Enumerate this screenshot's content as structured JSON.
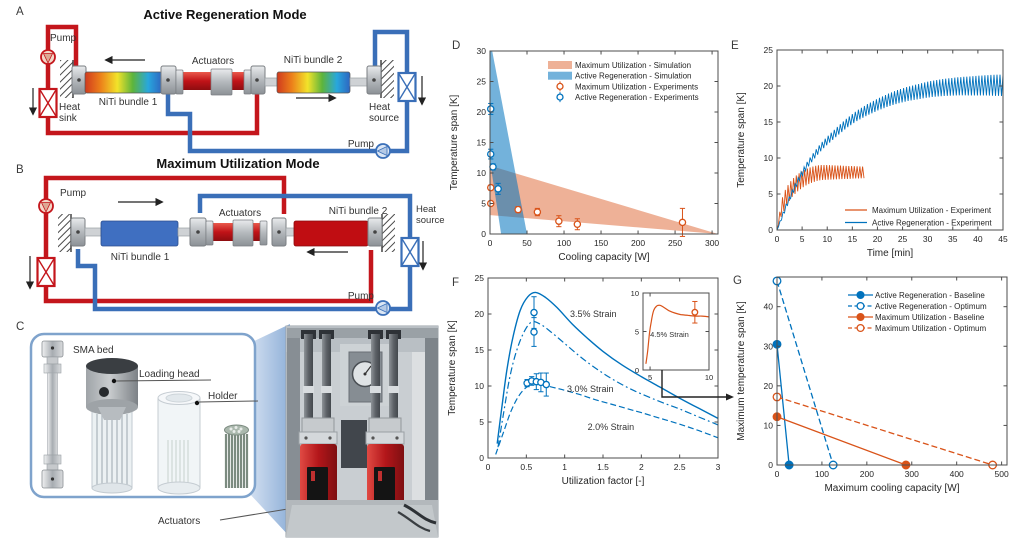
{
  "panels": {
    "a": "A",
    "b": "B",
    "c": "C",
    "d": "D",
    "e": "E",
    "f": "F",
    "g": "G"
  },
  "diagram_a": {
    "title": "Active Regeneration Mode",
    "pump_top": "Pump",
    "pump_bottom": "Pump",
    "heat_sink": [
      "Heat",
      "sink"
    ],
    "heat_source": [
      "Heat",
      "source"
    ],
    "niti1": "NiTi bundle 1",
    "niti2": "NiTi bundle 2",
    "actuators": "Actuators"
  },
  "diagram_b": {
    "title": "Maximum Utilization Mode",
    "pump_top": "Pump",
    "pump_bottom": "Pump",
    "heat_source": [
      "Heat",
      "source"
    ],
    "niti1": "NiTi bundle 1",
    "niti2": "NiTi bundle 2",
    "actuators": "Actuators"
  },
  "diagram_c": {
    "sma_bed": "SMA bed",
    "loading_head": "Loading head",
    "holder": "Holder",
    "actuators": "Actuators"
  },
  "chart_data": [
    {
      "id": "D",
      "type": "scatter",
      "xlabel": "Cooling capacity [W]",
      "ylabel": "Temperature span [K]",
      "xlim": [
        0,
        308
      ],
      "ylim": [
        0,
        30
      ],
      "xticks": [
        0,
        50,
        100,
        150,
        200,
        250,
        300
      ],
      "yticks": [
        0,
        5,
        10,
        15,
        20,
        25,
        30
      ],
      "bands": [
        {
          "name": "Maximum Utilization - Simulation",
          "color": "rgba(217,83,25,0.45)",
          "points": [
            [
              0,
              11.2
            ],
            [
              308,
              0
            ],
            [
              0,
              3.1
            ]
          ]
        },
        {
          "name": "Active Regeneration - Simulation",
          "color": "rgba(0,114,189,0.55)",
          "points": [
            [
              0,
              30
            ],
            [
              3,
              30
            ],
            [
              50,
              0
            ],
            [
              15,
              0
            ],
            [
              0,
              12
            ]
          ]
        }
      ],
      "scatter": [
        {
          "name": "Maximum Utilization - Experiments",
          "color": "#D95319",
          "points": [
            [
              1,
              7.6,
              0.4
            ],
            [
              1,
              5.0,
              0.3
            ],
            [
              38,
              4.0,
              0.5
            ],
            [
              64,
              3.6,
              0.6
            ],
            [
              93,
              2.1,
              0.9
            ],
            [
              118,
              1.6,
              0.9
            ],
            [
              260,
              1.9,
              2.3
            ]
          ]
        },
        {
          "name": "Active Regeneration - Experiments",
          "color": "#0072BD",
          "points": [
            [
              1,
              20.5,
              0.9
            ],
            [
              1,
              13.1,
              0.8
            ],
            [
              4,
              11.0,
              0.5
            ],
            [
              11,
              7.4,
              0.9
            ]
          ]
        }
      ],
      "legend": [
        {
          "label": "Maximum Utilization - Simulation",
          "swatch": "band",
          "color": "rgba(217,83,25,0.45)"
        },
        {
          "label": "Active Regeneration - Simulation",
          "swatch": "band",
          "color": "rgba(0,114,189,0.55)"
        },
        {
          "label": "Maximum Utilization - Experiments",
          "swatch": "errmarker",
          "color": "#D95319"
        },
        {
          "label": "Active Regeneration - Experiments",
          "swatch": "errmarker",
          "color": "#0072BD"
        }
      ]
    },
    {
      "id": "E",
      "type": "line",
      "xlabel": "Time [min]",
      "ylabel": "Temperature span [K]",
      "xlim": [
        0,
        45
      ],
      "ylim": [
        0,
        25
      ],
      "xticks": [
        0,
        5,
        10,
        15,
        20,
        25,
        30,
        35,
        40,
        45
      ],
      "yticks": [
        0,
        5,
        10,
        15,
        20,
        25
      ],
      "series": [
        {
          "name": "Maximum Utilization - Experiment",
          "color": "#D95319",
          "width": 0.9,
          "envelope": [
            [
              0,
              0
            ],
            [
              0.5,
              1.8
            ],
            [
              1,
              3.2
            ],
            [
              1.5,
              4.1
            ],
            [
              2,
              4.8
            ],
            [
              3,
              5.8
            ],
            [
              4,
              6.5
            ],
            [
              5,
              7.0
            ],
            [
              6,
              7.4
            ],
            [
              7,
              7.7
            ],
            [
              8,
              7.9
            ],
            [
              9,
              8.0
            ],
            [
              10,
              8.0
            ],
            [
              12,
              8.0
            ],
            [
              14,
              8.0
            ],
            [
              16,
              8.0
            ],
            [
              17.5,
              8.0
            ]
          ],
          "osc": {
            "amp0": 1.3,
            "amp1": 0.8,
            "period": 0.55
          }
        },
        {
          "name": "Active Regeneration - Experiment",
          "color": "#0072BD",
          "width": 0.9,
          "envelope": [
            [
              0,
              0
            ],
            [
              1,
              1.8
            ],
            [
              2,
              3.6
            ],
            [
              3,
              5.2
            ],
            [
              4,
              6.6
            ],
            [
              5,
              7.9
            ],
            [
              6,
              9.0
            ],
            [
              7,
              10.0
            ],
            [
              8,
              10.9
            ],
            [
              9,
              11.7
            ],
            [
              10,
              12.4
            ],
            [
              12,
              13.7
            ],
            [
              14,
              14.9
            ],
            [
              16,
              15.9
            ],
            [
              18,
              16.7
            ],
            [
              20,
              17.4
            ],
            [
              22,
              18.0
            ],
            [
              24,
              18.5
            ],
            [
              26,
              18.9
            ],
            [
              28,
              19.2
            ],
            [
              30,
              19.5
            ],
            [
              32,
              19.7
            ],
            [
              34,
              19.85
            ],
            [
              36,
              19.95
            ],
            [
              38,
              20.0
            ],
            [
              40,
              20.05
            ],
            [
              42,
              20.1
            ],
            [
              45,
              20.1
            ]
          ],
          "osc": {
            "amp0": 0.3,
            "amp1": 1.5,
            "period": 0.6
          }
        }
      ],
      "legend": [
        {
          "label": "Maximum Utilization - Experiment",
          "swatch": "line",
          "color": "#D95319"
        },
        {
          "label": "Active Regeneration - Experiment",
          "swatch": "line",
          "color": "#0072BD"
        }
      ]
    },
    {
      "id": "F",
      "type": "line",
      "xlabel": "Utilization factor [-]",
      "ylabel": "Temperature span [K]",
      "xlim": [
        0,
        3
      ],
      "ylim": [
        0,
        25
      ],
      "xticks": [
        0,
        0.5,
        1,
        1.5,
        2,
        2.5,
        3
      ],
      "yticks": [
        0,
        5,
        10,
        15,
        20,
        25
      ],
      "series": [
        {
          "name": "3.5% Strain",
          "color": "#0072BD",
          "dash": "solid",
          "width": 1.4,
          "points": [
            [
              0.12,
              2
            ],
            [
              0.18,
              7
            ],
            [
              0.25,
              12.5
            ],
            [
              0.33,
              17
            ],
            [
              0.42,
              20.5
            ],
            [
              0.52,
              22.4
            ],
            [
              0.62,
              23
            ],
            [
              0.75,
              22.3
            ],
            [
              0.9,
              20.9
            ],
            [
              1.1,
              18.6
            ],
            [
              1.3,
              16.6
            ],
            [
              1.5,
              14.8
            ],
            [
              1.75,
              12.9
            ],
            [
              2.0,
              11.3
            ],
            [
              2.25,
              9.8
            ],
            [
              2.5,
              8.3
            ],
            [
              2.75,
              6.9
            ],
            [
              3.0,
              5.5
            ]
          ]
        },
        {
          "name": "3.0% Strain",
          "color": "#0072BD",
          "dash": "dashdot",
          "width": 1.2,
          "points": [
            [
              0.13,
              1.5
            ],
            [
              0.2,
              6
            ],
            [
              0.28,
              11
            ],
            [
              0.37,
              14.8
            ],
            [
              0.47,
              17.5
            ],
            [
              0.57,
              18.9
            ],
            [
              0.68,
              18.6
            ],
            [
              0.8,
              17.7
            ],
            [
              1.0,
              15.9
            ],
            [
              1.2,
              14.1
            ],
            [
              1.4,
              12.5
            ],
            [
              1.6,
              11.1
            ],
            [
              1.8,
              9.9
            ],
            [
              2.0,
              8.9
            ],
            [
              2.25,
              7.8
            ],
            [
              2.5,
              6.8
            ],
            [
              2.75,
              5.7
            ],
            [
              3.0,
              4.6
            ]
          ]
        },
        {
          "name": "2.0% Strain",
          "color": "#0072BD",
          "dash": "dashed",
          "width": 1.2,
          "points": [
            [
              0.1,
              0.5
            ],
            [
              0.2,
              3.5
            ],
            [
              0.3,
              6.5
            ],
            [
              0.4,
              8.6
            ],
            [
              0.5,
              9.8
            ],
            [
              0.6,
              10.3
            ],
            [
              0.7,
              10.2
            ],
            [
              0.85,
              9.8
            ],
            [
              1.0,
              9.4
            ],
            [
              1.2,
              8.8
            ],
            [
              1.4,
              8.1
            ],
            [
              1.6,
              7.5
            ],
            [
              1.8,
              6.9
            ],
            [
              2.0,
              6.3
            ],
            [
              2.25,
              5.5
            ],
            [
              2.5,
              4.7
            ],
            [
              2.75,
              3.8
            ],
            [
              3.0,
              2.8
            ]
          ]
        }
      ],
      "scatter": [
        {
          "name": "Experiments",
          "color": "#0072BD",
          "points": [
            [
              0.6,
              20.2,
              2.2
            ],
            [
              0.6,
              17.5,
              2.0
            ],
            [
              0.51,
              10.4,
              0.5
            ],
            [
              0.57,
              10.7,
              0.6
            ],
            [
              0.63,
              10.6,
              1.1
            ],
            [
              0.69,
              10.5,
              1.3
            ],
            [
              0.76,
              10.2,
              1.6
            ]
          ]
        }
      ],
      "annotations": [
        {
          "text": "3.5% Strain",
          "x": 1.07,
          "y": 19.6
        },
        {
          "text": "3.0% Strain",
          "x": 1.03,
          "y": 9.2
        },
        {
          "text": "2.0% Strain",
          "x": 1.3,
          "y": 3.9
        }
      ],
      "inset": {
        "xlim": [
          4.4,
          10
        ],
        "ylim": [
          0,
          10
        ],
        "xticks": [
          5,
          10
        ],
        "yticks": [
          0,
          5,
          10
        ],
        "series": [
          {
            "name": "4.5% Strain",
            "color": "#D95319",
            "dash": "solid",
            "width": 1.2,
            "points": [
              [
                4.65,
                0.8
              ],
              [
                4.8,
                2.5
              ],
              [
                4.95,
                4.8
              ],
              [
                5.1,
                6.3
              ],
              [
                5.3,
                7.7
              ],
              [
                5.55,
                8.3
              ],
              [
                5.85,
                8.4
              ],
              [
                6.2,
                8.1
              ],
              [
                6.6,
                7.7
              ],
              [
                7.1,
                7.4
              ],
              [
                7.6,
                7.2
              ],
              [
                8.2,
                7.1
              ],
              [
                8.8,
                7.0
              ],
              [
                9.4,
                7.0
              ],
              [
                10,
                6.9
              ]
            ]
          }
        ],
        "scatter": [
          {
            "name": "4.5% Strain Experiment",
            "color": "#D95319",
            "points": [
              [
                8.8,
                7.5,
                1.4
              ]
            ]
          }
        ],
        "annotations": [
          {
            "text": "4.5% Strain",
            "x": 5.0,
            "y": 4.3
          }
        ]
      }
    },
    {
      "id": "G",
      "type": "line",
      "xlabel": "Maximum cooling capacity [W]",
      "ylabel": "Maximum temperature span [K]",
      "xlim": [
        0,
        512
      ],
      "ylim": [
        0,
        47.5
      ],
      "xticks": [
        0,
        100,
        200,
        300,
        400,
        500
      ],
      "yticks": [
        0,
        10,
        20,
        30,
        40
      ],
      "series": [
        {
          "name": "Active Regeneration - Baseline",
          "color": "#0072BD",
          "dash": "solid",
          "width": 1.3,
          "marker": "filled",
          "points": [
            [
              0,
              30.5
            ],
            [
              27,
              0
            ]
          ]
        },
        {
          "name": "Active Regeneration - Optimum",
          "color": "#0072BD",
          "dash": "dashed",
          "width": 1.3,
          "marker": "open",
          "points": [
            [
              0,
              46.5
            ],
            [
              125,
              0
            ]
          ]
        },
        {
          "name": "Maximum Utilization - Baseline",
          "color": "#D95319",
          "dash": "solid",
          "width": 1.3,
          "marker": "filled",
          "points": [
            [
              0,
              12.2
            ],
            [
              287,
              0
            ]
          ]
        },
        {
          "name": "Maximum Utilization - Optimum",
          "color": "#D95319",
          "dash": "dashed",
          "width": 1.3,
          "marker": "open",
          "points": [
            [
              0,
              17.2
            ],
            [
              480,
              0
            ]
          ]
        }
      ],
      "legend": [
        {
          "label": "Active Regeneration - Baseline",
          "swatch": "line-marker",
          "color": "#0072BD",
          "dash": "solid",
          "marker": "filled"
        },
        {
          "label": "Active Regeneration - Optimum",
          "swatch": "line-marker",
          "color": "#0072BD",
          "dash": "dashed",
          "marker": "open"
        },
        {
          "label": "Maximum Utilization - Baseline",
          "swatch": "line-marker",
          "color": "#D95319",
          "dash": "solid",
          "marker": "filled"
        },
        {
          "label": "Maximum Utilization - Optimum",
          "swatch": "line-marker",
          "color": "#D95319",
          "dash": "dashed",
          "marker": "open"
        }
      ]
    }
  ]
}
